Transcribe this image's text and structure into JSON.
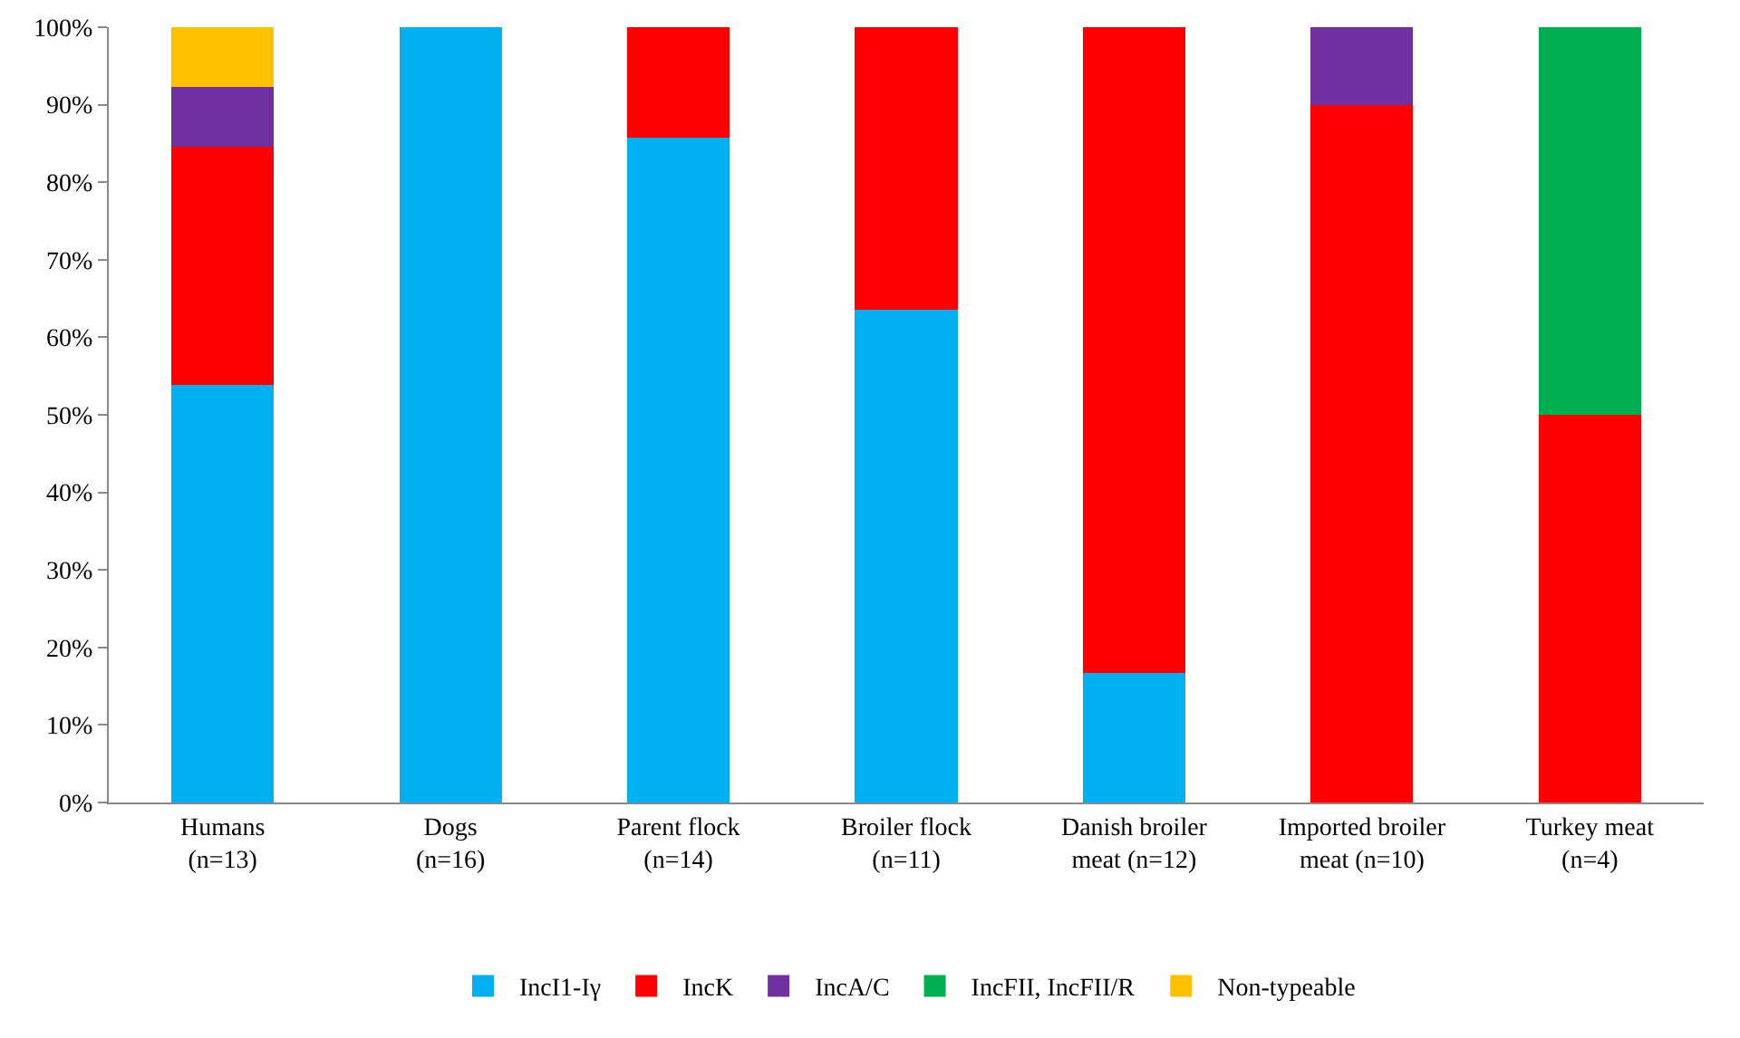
{
  "chart_data": {
    "type": "bar",
    "stacked": true,
    "categories": [
      "Humans\n(n=13)",
      "Dogs\n(n=16)",
      "Parent flock\n(n=14)",
      "Broiler flock\n(n=11)",
      "Danish broiler\nmeat (n=12)",
      "Imported broiler\nmeat (n=10)",
      "Turkey meat\n(n=4)"
    ],
    "series": [
      {
        "name": "IncI1-Iγ",
        "color": "#00b0f0",
        "values": [
          53.8,
          100,
          85.7,
          63.6,
          16.7,
          0,
          0
        ]
      },
      {
        "name": "IncK",
        "color": "#ff0000",
        "values": [
          30.8,
          0,
          14.3,
          36.4,
          83.3,
          90,
          50
        ]
      },
      {
        "name": "IncA/C",
        "color": "#7030a0",
        "values": [
          7.7,
          0,
          0,
          0,
          0,
          10,
          0
        ]
      },
      {
        "name": "IncFII, IncFII/R",
        "color": "#00b050",
        "values": [
          0,
          0,
          0,
          0,
          0,
          0,
          50
        ]
      },
      {
        "name": "Non-typeable",
        "color": "#ffc000",
        "values": [
          7.7,
          0,
          0,
          0,
          0,
          0,
          0
        ]
      }
    ],
    "ylim": [
      0,
      100
    ],
    "yticks": [
      {
        "value": 0,
        "label": "0%"
      },
      {
        "value": 10,
        "label": "10%"
      },
      {
        "value": 20,
        "label": "20%"
      },
      {
        "value": 30,
        "label": "30%"
      },
      {
        "value": 40,
        "label": "40%"
      },
      {
        "value": 50,
        "label": "50%"
      },
      {
        "value": 60,
        "label": "60%"
      },
      {
        "value": 70,
        "label": "70%"
      },
      {
        "value": 80,
        "label": "80%"
      },
      {
        "value": 90,
        "label": "90%"
      },
      {
        "value": 100,
        "label": "100%"
      }
    ],
    "grid": false,
    "legend": "bottom"
  }
}
